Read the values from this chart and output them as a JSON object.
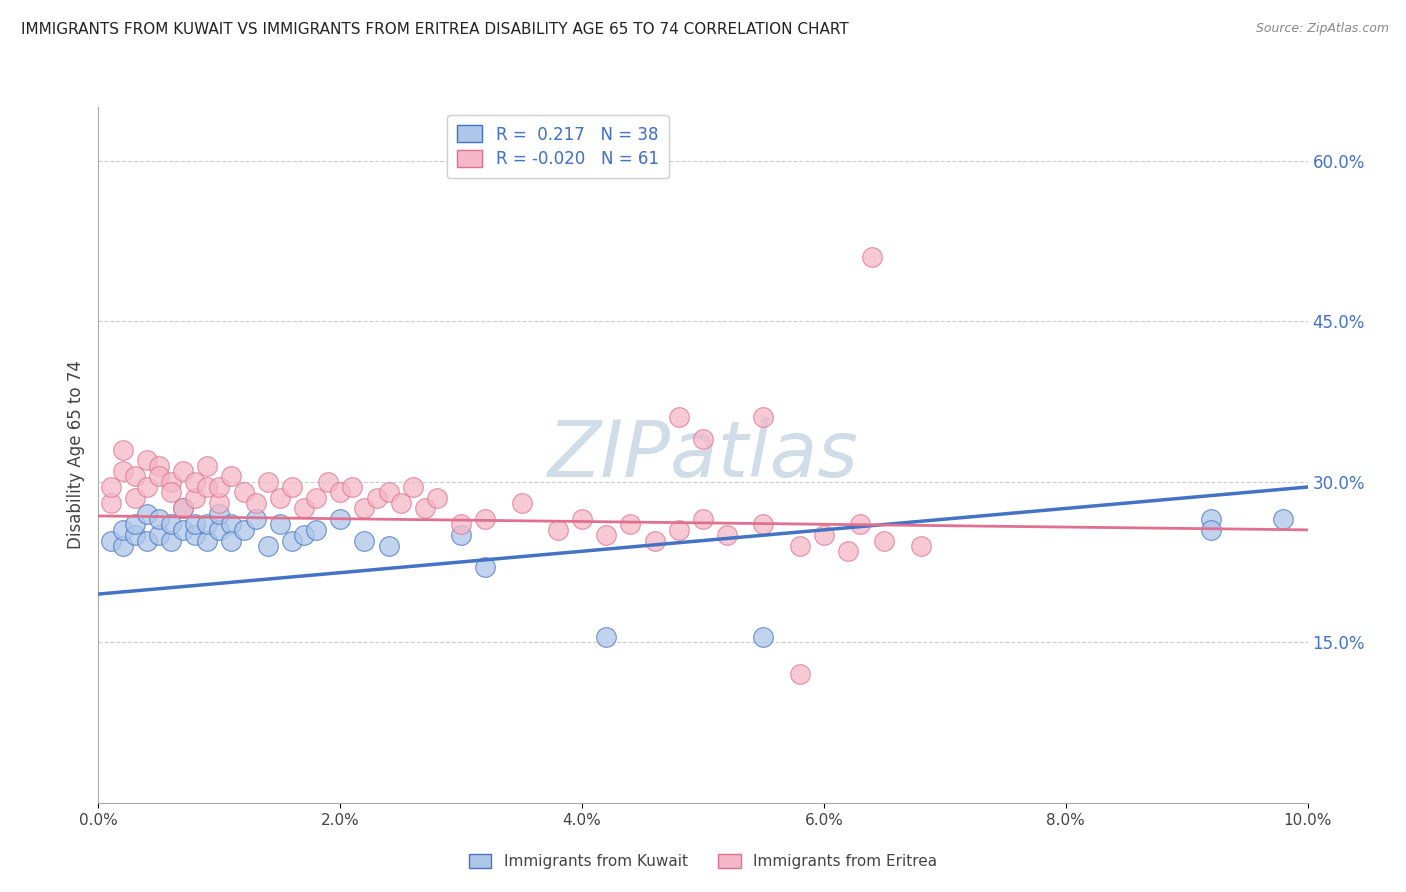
{
  "title": "IMMIGRANTS FROM KUWAIT VS IMMIGRANTS FROM ERITREA DISABILITY AGE 65 TO 74 CORRELATION CHART",
  "source": "Source: ZipAtlas.com",
  "ylabel": "Disability Age 65 to 74",
  "xlim": [
    0.0,
    0.1
  ],
  "ylim": [
    0.0,
    0.65
  ],
  "xtick_vals": [
    0.0,
    0.02,
    0.04,
    0.06,
    0.08,
    0.1
  ],
  "xtick_labels": [
    "0.0%",
    "2.0%",
    "4.0%",
    "6.0%",
    "8.0%",
    "10.0%"
  ],
  "ytick_vals": [
    0.15,
    0.3,
    0.45,
    0.6
  ],
  "ytick_labels": [
    "15.0%",
    "30.0%",
    "45.0%",
    "60.0%"
  ],
  "kuwait_R": 0.217,
  "kuwait_N": 38,
  "eritrea_R": -0.02,
  "eritrea_N": 61,
  "kuwait_color": "#aec6e8",
  "eritrea_color": "#f4b8c8",
  "kuwait_line_color": "#4472c4",
  "eritrea_line_color": "#e07090",
  "watermark_text": "ZIPatlas",
  "legend_bottom": [
    "Immigrants from Kuwait",
    "Immigrants from Eritrea"
  ],
  "kuwait_x": [
    0.001,
    0.002,
    0.002,
    0.003,
    0.003,
    0.004,
    0.004,
    0.005,
    0.005,
    0.006,
    0.006,
    0.007,
    0.007,
    0.008,
    0.008,
    0.009,
    0.009,
    0.01,
    0.01,
    0.011,
    0.011,
    0.012,
    0.013,
    0.014,
    0.015,
    0.016,
    0.017,
    0.018,
    0.02,
    0.022,
    0.024,
    0.03,
    0.032,
    0.042,
    0.055,
    0.092,
    0.092,
    0.098
  ],
  "kuwait_y": [
    0.245,
    0.24,
    0.255,
    0.25,
    0.26,
    0.245,
    0.27,
    0.25,
    0.265,
    0.245,
    0.26,
    0.255,
    0.275,
    0.25,
    0.26,
    0.245,
    0.26,
    0.255,
    0.27,
    0.26,
    0.245,
    0.255,
    0.265,
    0.24,
    0.26,
    0.245,
    0.25,
    0.255,
    0.265,
    0.245,
    0.24,
    0.25,
    0.22,
    0.155,
    0.155,
    0.265,
    0.255,
    0.265
  ],
  "eritrea_x": [
    0.001,
    0.001,
    0.002,
    0.002,
    0.003,
    0.003,
    0.004,
    0.004,
    0.005,
    0.005,
    0.006,
    0.006,
    0.007,
    0.007,
    0.008,
    0.008,
    0.009,
    0.009,
    0.01,
    0.01,
    0.011,
    0.012,
    0.013,
    0.014,
    0.015,
    0.016,
    0.017,
    0.018,
    0.019,
    0.02,
    0.021,
    0.022,
    0.023,
    0.024,
    0.025,
    0.026,
    0.027,
    0.028,
    0.03,
    0.032,
    0.035,
    0.038,
    0.04,
    0.042,
    0.044,
    0.046,
    0.048,
    0.05,
    0.052,
    0.055,
    0.058,
    0.06,
    0.062,
    0.065,
    0.068,
    0.048,
    0.05,
    0.055,
    0.058,
    0.063,
    0.064
  ],
  "eritrea_y": [
    0.28,
    0.295,
    0.31,
    0.33,
    0.285,
    0.305,
    0.32,
    0.295,
    0.315,
    0.305,
    0.3,
    0.29,
    0.31,
    0.275,
    0.285,
    0.3,
    0.295,
    0.315,
    0.28,
    0.295,
    0.305,
    0.29,
    0.28,
    0.3,
    0.285,
    0.295,
    0.275,
    0.285,
    0.3,
    0.29,
    0.295,
    0.275,
    0.285,
    0.29,
    0.28,
    0.295,
    0.275,
    0.285,
    0.26,
    0.265,
    0.28,
    0.255,
    0.265,
    0.25,
    0.26,
    0.245,
    0.255,
    0.265,
    0.25,
    0.26,
    0.24,
    0.25,
    0.235,
    0.245,
    0.24,
    0.36,
    0.34,
    0.36,
    0.12,
    0.26,
    0.51
  ],
  "kuwait_line_x0": 0.0,
  "kuwait_line_y0": 0.195,
  "kuwait_line_x1": 0.1,
  "kuwait_line_y1": 0.295,
  "eritrea_line_x0": 0.0,
  "eritrea_line_y0": 0.268,
  "eritrea_line_x1": 0.1,
  "eritrea_line_y1": 0.255
}
